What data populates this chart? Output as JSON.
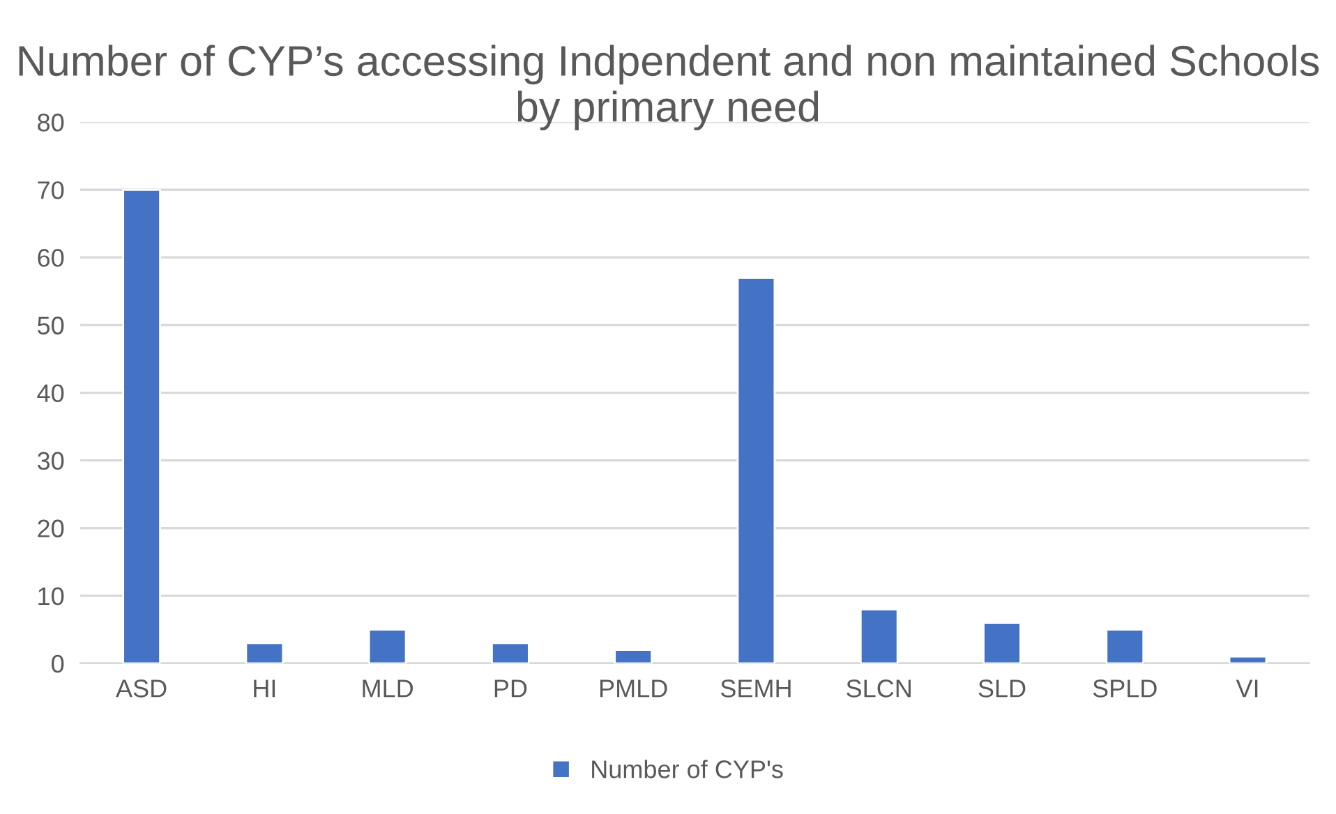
{
  "chart_data": {
    "type": "bar",
    "title": "Number of CYP’s accessing Indpendent and non maintained Schools by primary need",
    "categories": [
      "ASD",
      "HI",
      "MLD",
      "PD",
      "PMLD",
      "SEMH",
      "SLCN",
      "SLD",
      "SPLD",
      "VI"
    ],
    "series": [
      {
        "name": "Number of CYP's",
        "color": "#4472c4",
        "values": [
          70,
          3,
          5,
          3,
          2,
          57,
          8,
          6,
          5,
          1
        ]
      }
    ],
    "ylim": [
      0,
      80
    ],
    "yticks": [
      0,
      10,
      20,
      30,
      40,
      50,
      60,
      70,
      80
    ],
    "grid": "y",
    "legend": "bottom"
  }
}
